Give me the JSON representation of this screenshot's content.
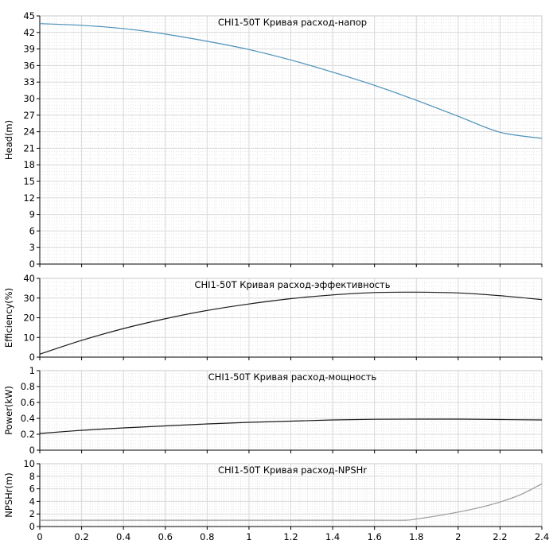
{
  "chart_data": [
    {
      "type": "line",
      "title": "CHI1-50T Кривая расход-напор",
      "xlabel": "",
      "ylabel": "Head(m)",
      "xlim": [
        0,
        2.4
      ],
      "ylim": [
        0,
        45
      ],
      "x_ticks": [
        "0",
        "0.2",
        "0.4",
        "0.6",
        "0.8",
        "1",
        "1.2",
        "1.4",
        "1.6",
        "1.8",
        "2",
        "2.2",
        "2.4"
      ],
      "y_ticks": [
        "0",
        "3",
        "6",
        "9",
        "12",
        "15",
        "18",
        "21",
        "24",
        "27",
        "30",
        "33",
        "36",
        "39",
        "42",
        "45"
      ],
      "grid": true,
      "color": "#4a90b8",
      "series": [
        {
          "x": [
            0,
            0.2,
            0.4,
            0.6,
            0.8,
            1.0,
            1.2,
            1.4,
            1.6,
            1.8,
            2.0,
            2.2,
            2.4
          ],
          "values": [
            43.6,
            43.3,
            42.7,
            41.7,
            40.4,
            38.9,
            37.0,
            34.8,
            32.4,
            29.7,
            26.8,
            23.9,
            22.8
          ]
        }
      ]
    },
    {
      "type": "line",
      "title": "CHI1-50T Кривая расход-эффективность",
      "xlabel": "",
      "ylabel": "Efficiency(%)",
      "xlim": [
        0,
        2.4
      ],
      "ylim": [
        0,
        40
      ],
      "x_ticks": [
        "0",
        "0.2",
        "0.4",
        "0.6",
        "0.8",
        "1",
        "1.2",
        "1.4",
        "1.6",
        "1.8",
        "2",
        "2.2",
        "2.4"
      ],
      "y_ticks": [
        "0",
        "10",
        "20",
        "30",
        "40"
      ],
      "grid": true,
      "color": "#1a1a1a",
      "series": [
        {
          "x": [
            0,
            0.2,
            0.4,
            0.6,
            0.8,
            1.0,
            1.2,
            1.4,
            1.6,
            1.8,
            2.0,
            2.2,
            2.4
          ],
          "values": [
            1.5,
            8.5,
            14.5,
            19.5,
            23.7,
            27.0,
            29.7,
            31.6,
            32.8,
            33.0,
            32.6,
            31.2,
            29.2
          ]
        }
      ]
    },
    {
      "type": "line",
      "title": "CHI1-50T Кривая расход-мощность",
      "xlabel": "",
      "ylabel": "Power(kW)",
      "xlim": [
        0,
        2.4
      ],
      "ylim": [
        0,
        1
      ],
      "x_ticks": [
        "0",
        "0.2",
        "0.4",
        "0.6",
        "0.8",
        "1",
        "1.2",
        "1.4",
        "1.6",
        "1.8",
        "2",
        "2.2",
        "2.4"
      ],
      "y_ticks": [
        "0",
        "0.2",
        "0.4",
        "0.6",
        "0.8",
        "1"
      ],
      "grid": true,
      "color": "#1a1a1a",
      "series": [
        {
          "x": [
            0,
            0.2,
            0.4,
            0.6,
            0.8,
            1.0,
            1.2,
            1.4,
            1.6,
            1.8,
            2.0,
            2.2,
            2.4
          ],
          "values": [
            0.21,
            0.25,
            0.28,
            0.305,
            0.33,
            0.35,
            0.365,
            0.38,
            0.388,
            0.39,
            0.39,
            0.385,
            0.38
          ]
        }
      ]
    },
    {
      "type": "line",
      "title": "CHI1-50T Кривая расход-NPSHr",
      "xlabel": "",
      "ylabel": "NPSHr(m)",
      "xlim": [
        0,
        2.4
      ],
      "ylim": [
        0,
        10
      ],
      "x_ticks": [
        "0",
        "0.2",
        "0.4",
        "0.6",
        "0.8",
        "1",
        "1.2",
        "1.4",
        "1.6",
        "1.8",
        "2",
        "2.2",
        "2.4"
      ],
      "y_ticks": [
        "0",
        "2",
        "4",
        "6",
        "8",
        "10"
      ],
      "show_x_tick_labels": true,
      "grid": true,
      "color": "#999999",
      "series": [
        {
          "x": [
            0,
            0.4,
            0.8,
            1.2,
            1.6,
            1.75,
            1.8,
            1.9,
            2.0,
            2.1,
            2.2,
            2.3,
            2.4
          ],
          "values": [
            1.0,
            1.0,
            1.0,
            1.0,
            1.0,
            1.0,
            1.2,
            1.7,
            2.3,
            3.0,
            3.9,
            5.1,
            6.8
          ]
        }
      ]
    }
  ]
}
